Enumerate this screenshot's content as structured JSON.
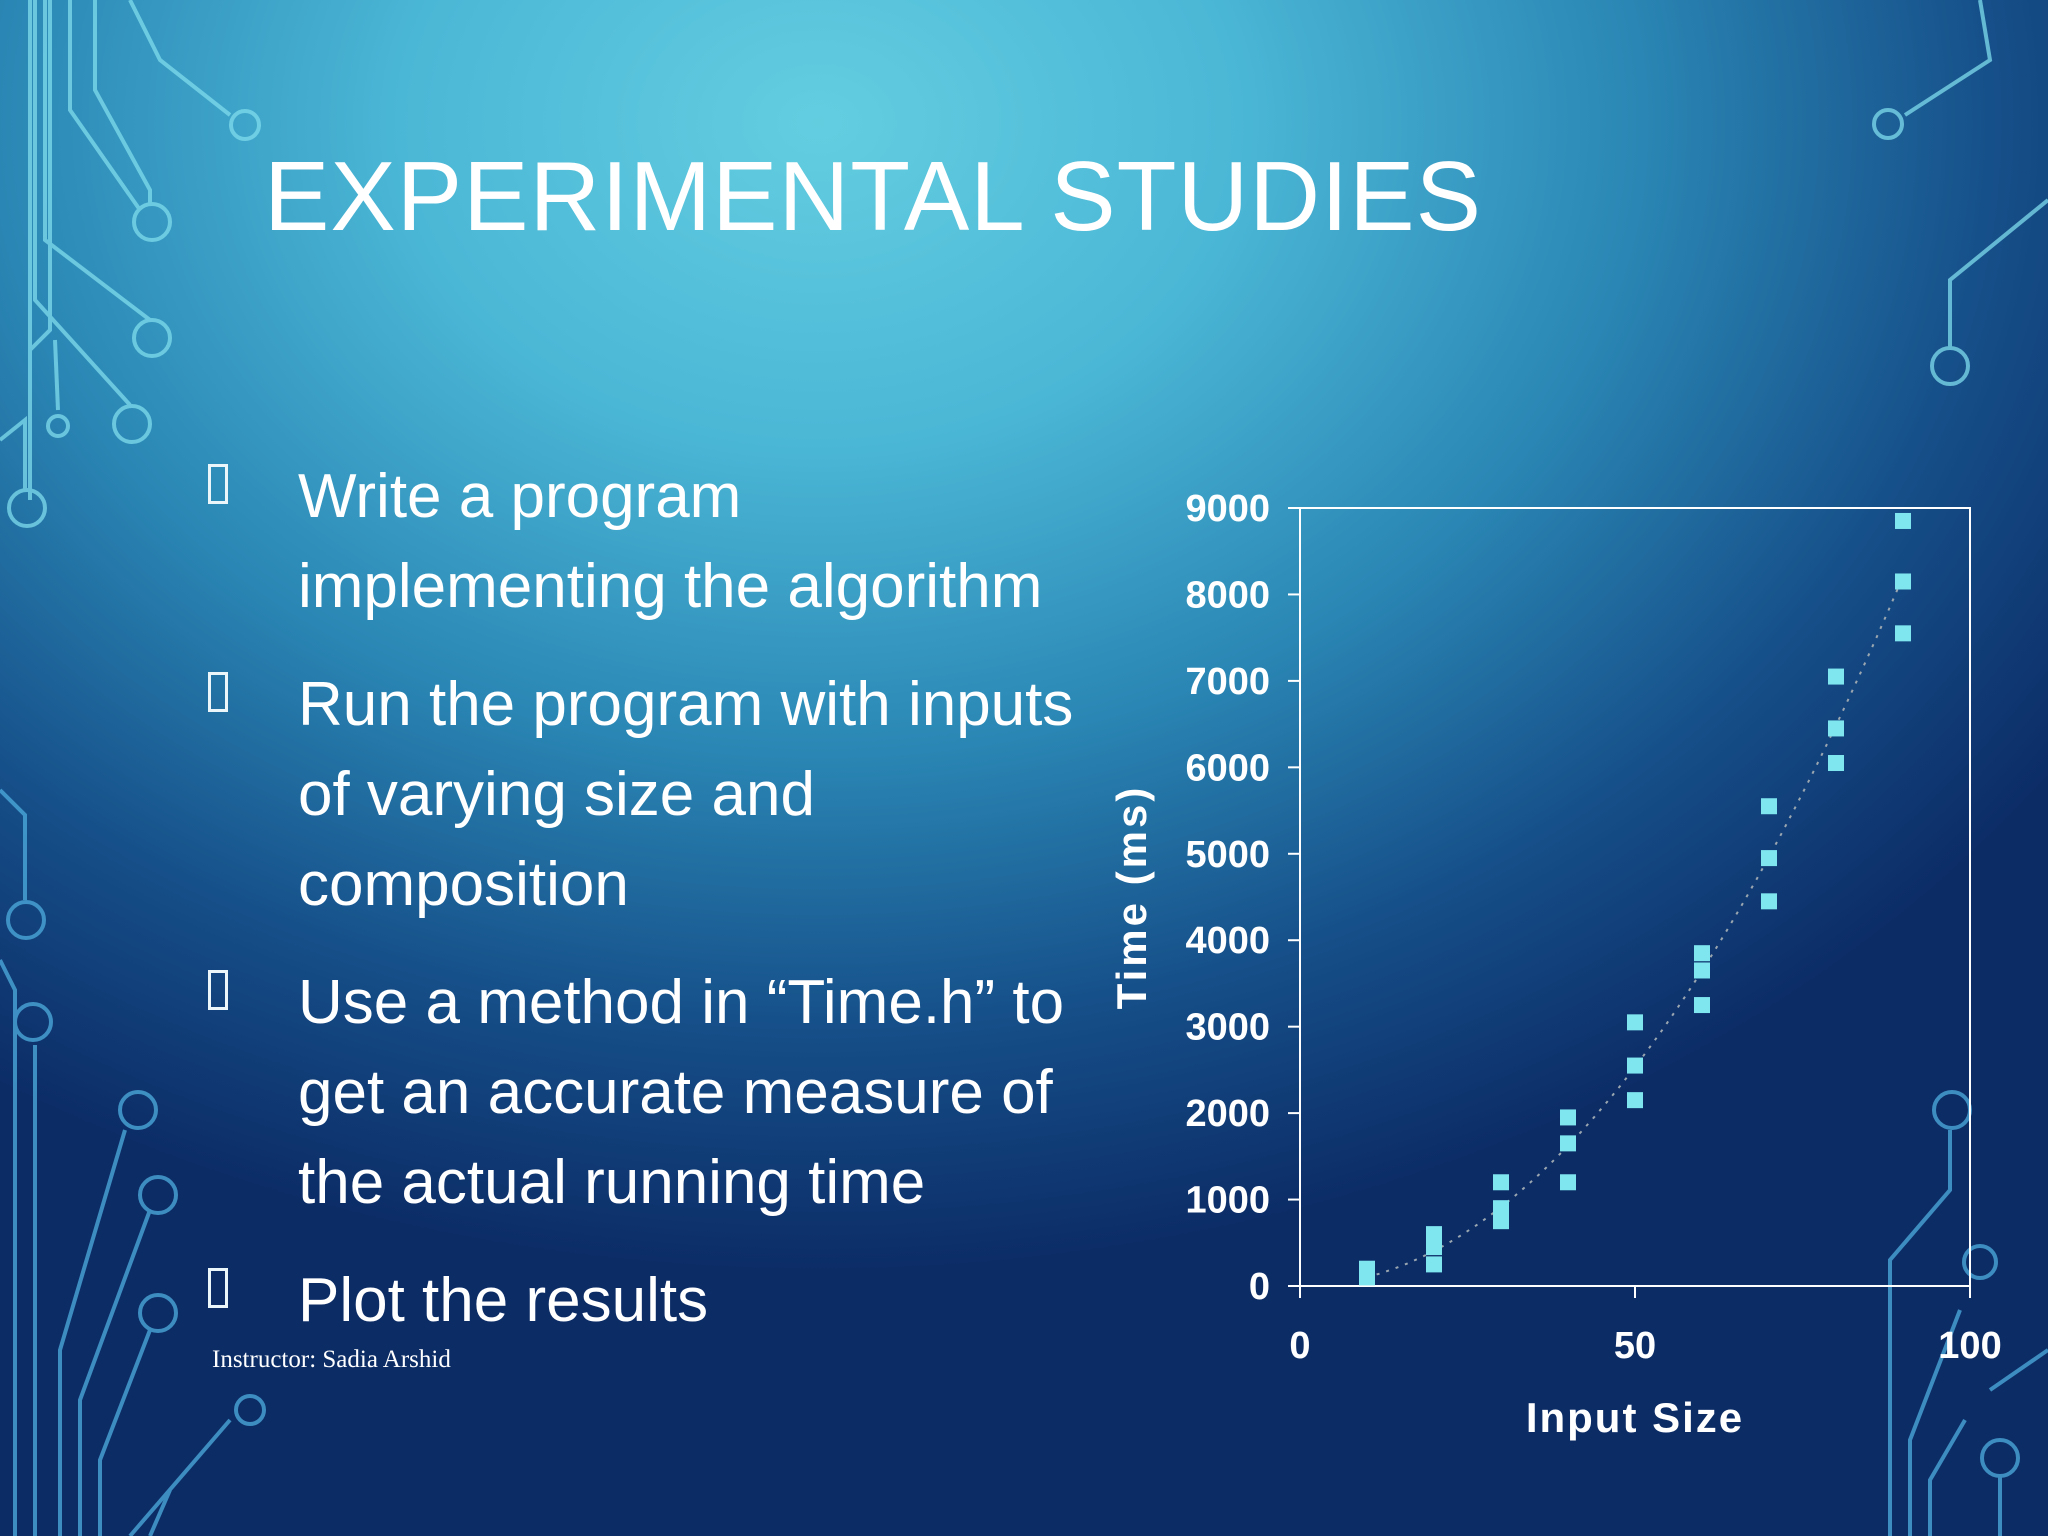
{
  "slide": {
    "title": "EXPERIMENTAL STUDIES",
    "footer": "Instructor: Sadia Arshid",
    "bullets": [
      {
        "text": "Write a program implementing the algorithm"
      },
      {
        "text": "Run the program with inputs of varying size and composition"
      },
      {
        "text": "Use a method in “Time.h” to get an accurate measure of the actual running time"
      },
      {
        "text": "Plot the results"
      }
    ]
  },
  "colors": {
    "marker": "#7fe6f0",
    "axis": "#ffffff",
    "trend": "#9aa6b0"
  },
  "chart_data": {
    "type": "scatter",
    "xlabel": "Input Size",
    "ylabel": "Time (ms)",
    "xlim": [
      0,
      100
    ],
    "ylim": [
      0,
      9000
    ],
    "xticks": [
      "0",
      "50",
      "100"
    ],
    "yticks": [
      "0",
      "1000",
      "2000",
      "3000",
      "4000",
      "5000",
      "6000",
      "7000",
      "8000",
      "9000"
    ],
    "trendline": "dotted",
    "points": [
      {
        "x": 10,
        "y": 100
      },
      {
        "x": 10,
        "y": 200
      },
      {
        "x": 20,
        "y": 250
      },
      {
        "x": 20,
        "y": 450
      },
      {
        "x": 20,
        "y": 600
      },
      {
        "x": 30,
        "y": 750
      },
      {
        "x": 30,
        "y": 900
      },
      {
        "x": 30,
        "y": 1200
      },
      {
        "x": 40,
        "y": 1200
      },
      {
        "x": 40,
        "y": 1650
      },
      {
        "x": 40,
        "y": 1950
      },
      {
        "x": 50,
        "y": 2150
      },
      {
        "x": 50,
        "y": 2550
      },
      {
        "x": 50,
        "y": 3050
      },
      {
        "x": 60,
        "y": 3250
      },
      {
        "x": 60,
        "y": 3650
      },
      {
        "x": 60,
        "y": 3850
      },
      {
        "x": 70,
        "y": 4450
      },
      {
        "x": 70,
        "y": 4950
      },
      {
        "x": 70,
        "y": 5550
      },
      {
        "x": 80,
        "y": 6050
      },
      {
        "x": 80,
        "y": 6450
      },
      {
        "x": 80,
        "y": 7050
      },
      {
        "x": 90,
        "y": 7550
      },
      {
        "x": 90,
        "y": 8150
      },
      {
        "x": 90,
        "y": 8850
      }
    ]
  }
}
